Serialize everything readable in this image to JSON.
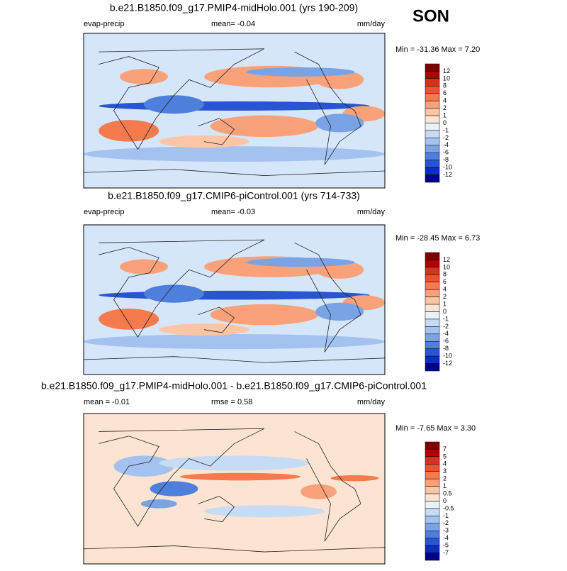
{
  "season": "SON",
  "panels": [
    {
      "title": "b.e21.B1850.f09_g17.PMIP4-midHolo.001 (yrs 190-209)",
      "left_label": "evap-precip",
      "center_label": "mean=  -0.04",
      "units": "mm/day",
      "min_max": "Min = -31.36 Max =   7.20",
      "background": "#d6e6fa",
      "colorbar_labels": [
        "12",
        "10",
        "8",
        "6",
        "4",
        "2",
        "1",
        "0",
        "-1",
        "-2",
        "-4",
        "-6",
        "-8",
        "-10",
        "-12"
      ]
    },
    {
      "title": "b.e21.B1850.f09_g17.CMIP6-piControl.001 (yrs 714-733)",
      "left_label": "evap-precip",
      "center_label": "mean=  -0.03",
      "units": "mm/day",
      "min_max": "Min = -28.45 Max =   6.73",
      "background": "#d6e6fa",
      "colorbar_labels": [
        "12",
        "10",
        "8",
        "6",
        "4",
        "2",
        "1",
        "0",
        "-1",
        "-2",
        "-4",
        "-6",
        "-8",
        "-10",
        "-12"
      ]
    },
    {
      "title": "b.e21.B1850.f09_g17.PMIP4-midHolo.001 - b.e21.B1850.f09_g17.CMIP6-piControl.001",
      "left_label": "mean =  -0.01",
      "center_label": "rmse =   0.58",
      "units": "mm/day",
      "min_max": "Min =  -7.65 Max =   3.30",
      "background": "#fde4d2",
      "colorbar_labels": [
        "7",
        "5",
        "4",
        "3",
        "2",
        "1",
        "0.5",
        "0",
        "-0.5",
        "-1",
        "-2",
        "-3",
        "-4",
        "-5",
        "-7"
      ]
    }
  ],
  "colorbar_colors": [
    "#7f0000",
    "#b30000",
    "#d7301f",
    "#ee5030",
    "#f57a4e",
    "#f9a27a",
    "#fcc6a6",
    "#fde4d2",
    "#e9f2fc",
    "#c6dbf5",
    "#a4c2ef",
    "#7aa3e6",
    "#4e7fdc",
    "#2a55d2",
    "#0a2ebf",
    "#00008b"
  ]
}
